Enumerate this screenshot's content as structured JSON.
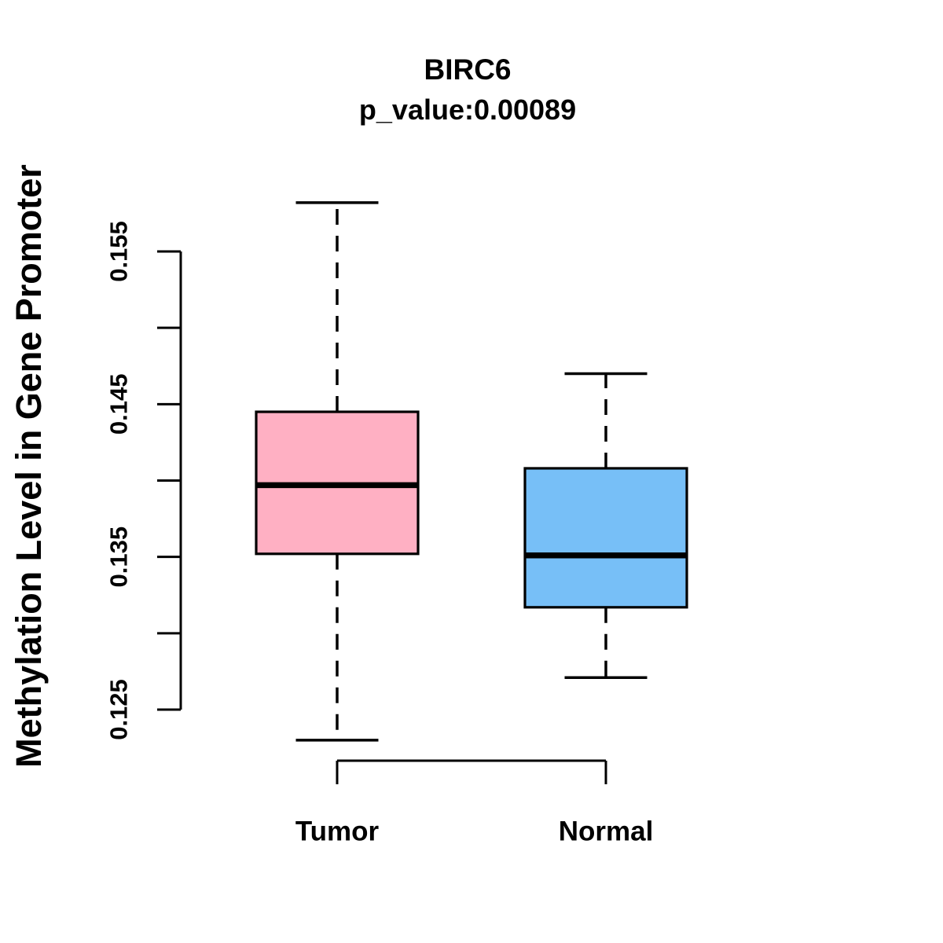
{
  "chart_data": {
    "type": "boxplot",
    "title": "BIRC6",
    "subtitle": "p_value:0.00089",
    "ylabel": "Methylation Level in Gene Promoter",
    "xlabel": "",
    "categories": [
      "Tumor",
      "Normal"
    ],
    "ylim": [
      0.125,
      0.155
    ],
    "y_ticks": [
      0.125,
      0.13,
      0.135,
      0.14,
      0.145,
      0.15,
      0.155
    ],
    "y_tick_labels": [
      "0.125",
      "0.135",
      "0.145",
      "0.155"
    ],
    "y_tick_label_values": [
      0.125,
      0.135,
      0.145,
      0.155
    ],
    "grid": false,
    "legend": false,
    "series": [
      {
        "name": "Tumor",
        "fill": "#FFB0C3",
        "stroke": "#000000",
        "lower_whisker": 0.123,
        "q1": 0.1352,
        "median": 0.1397,
        "q3": 0.1445,
        "upper_whisker": 0.1582
      },
      {
        "name": "Normal",
        "fill": "#77BFF7",
        "stroke": "#000000",
        "lower_whisker": 0.1271,
        "q1": 0.1317,
        "median": 0.1351,
        "q3": 0.1408,
        "upper_whisker": 0.147
      }
    ]
  }
}
